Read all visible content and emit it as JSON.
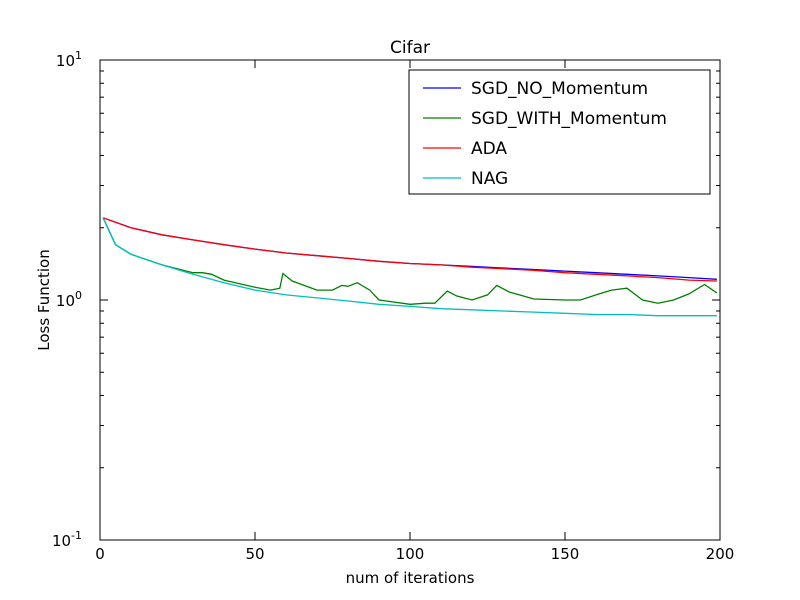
{
  "chart_data": {
    "type": "line",
    "title": "Cifar",
    "xlabel": "num of iterations",
    "ylabel": "Loss Function",
    "xlim": [
      0,
      200
    ],
    "ylim": [
      0.1,
      10
    ],
    "yscale": "log",
    "x_ticks": [
      0,
      50,
      100,
      150,
      200
    ],
    "y_ticks": [
      {
        "value": 0.1,
        "base": "10",
        "exp": "-1"
      },
      {
        "value": 1,
        "base": "10",
        "exp": "0"
      },
      {
        "value": 10,
        "base": "10",
        "exp": "1"
      }
    ],
    "grid": false,
    "legend_position": "top-right",
    "series": [
      {
        "name": "SGD_NO_Momentum",
        "color": "#0000ff",
        "x": [
          1,
          10,
          20,
          30,
          40,
          50,
          60,
          70,
          80,
          90,
          100,
          110,
          120,
          130,
          140,
          150,
          160,
          170,
          180,
          190,
          199
        ],
        "y": [
          2.2,
          2.0,
          1.87,
          1.78,
          1.7,
          1.63,
          1.57,
          1.53,
          1.49,
          1.45,
          1.42,
          1.4,
          1.38,
          1.36,
          1.34,
          1.32,
          1.3,
          1.28,
          1.26,
          1.24,
          1.22
        ]
      },
      {
        "name": "SGD_WITH_Momentum",
        "color": "#008000",
        "x": [
          1,
          5,
          10,
          20,
          30,
          33,
          36,
          40,
          50,
          55,
          58,
          59,
          62,
          70,
          75,
          78,
          80,
          83,
          87,
          90,
          100,
          105,
          108,
          112,
          115,
          120,
          125,
          128,
          132,
          140,
          150,
          155,
          160,
          165,
          170,
          175,
          180,
          185,
          190,
          195,
          199
        ],
        "y": [
          2.2,
          1.7,
          1.55,
          1.4,
          1.3,
          1.3,
          1.28,
          1.21,
          1.13,
          1.1,
          1.12,
          1.29,
          1.2,
          1.1,
          1.1,
          1.15,
          1.14,
          1.18,
          1.1,
          1.0,
          0.96,
          0.97,
          0.97,
          1.09,
          1.04,
          1.0,
          1.05,
          1.15,
          1.08,
          1.01,
          1.0,
          1.0,
          1.05,
          1.1,
          1.12,
          1.0,
          0.97,
          1.0,
          1.06,
          1.16,
          1.07
        ]
      },
      {
        "name": "ADA",
        "color": "#ff0000",
        "x": [
          1,
          10,
          20,
          30,
          40,
          50,
          60,
          70,
          80,
          90,
          100,
          110,
          120,
          130,
          140,
          150,
          160,
          170,
          180,
          190,
          199
        ],
        "y": [
          2.2,
          2.0,
          1.87,
          1.78,
          1.7,
          1.63,
          1.57,
          1.53,
          1.49,
          1.45,
          1.42,
          1.4,
          1.37,
          1.35,
          1.33,
          1.3,
          1.28,
          1.26,
          1.24,
          1.21,
          1.2
        ]
      },
      {
        "name": "NAG",
        "color": "#00bfbf",
        "x": [
          1,
          5,
          10,
          20,
          30,
          40,
          50,
          60,
          70,
          80,
          90,
          100,
          110,
          120,
          130,
          140,
          150,
          160,
          170,
          180,
          190,
          199
        ],
        "y": [
          2.2,
          1.7,
          1.55,
          1.4,
          1.28,
          1.18,
          1.1,
          1.05,
          1.02,
          0.99,
          0.96,
          0.94,
          0.92,
          0.91,
          0.9,
          0.89,
          0.88,
          0.87,
          0.87,
          0.86,
          0.86,
          0.86
        ]
      }
    ]
  }
}
